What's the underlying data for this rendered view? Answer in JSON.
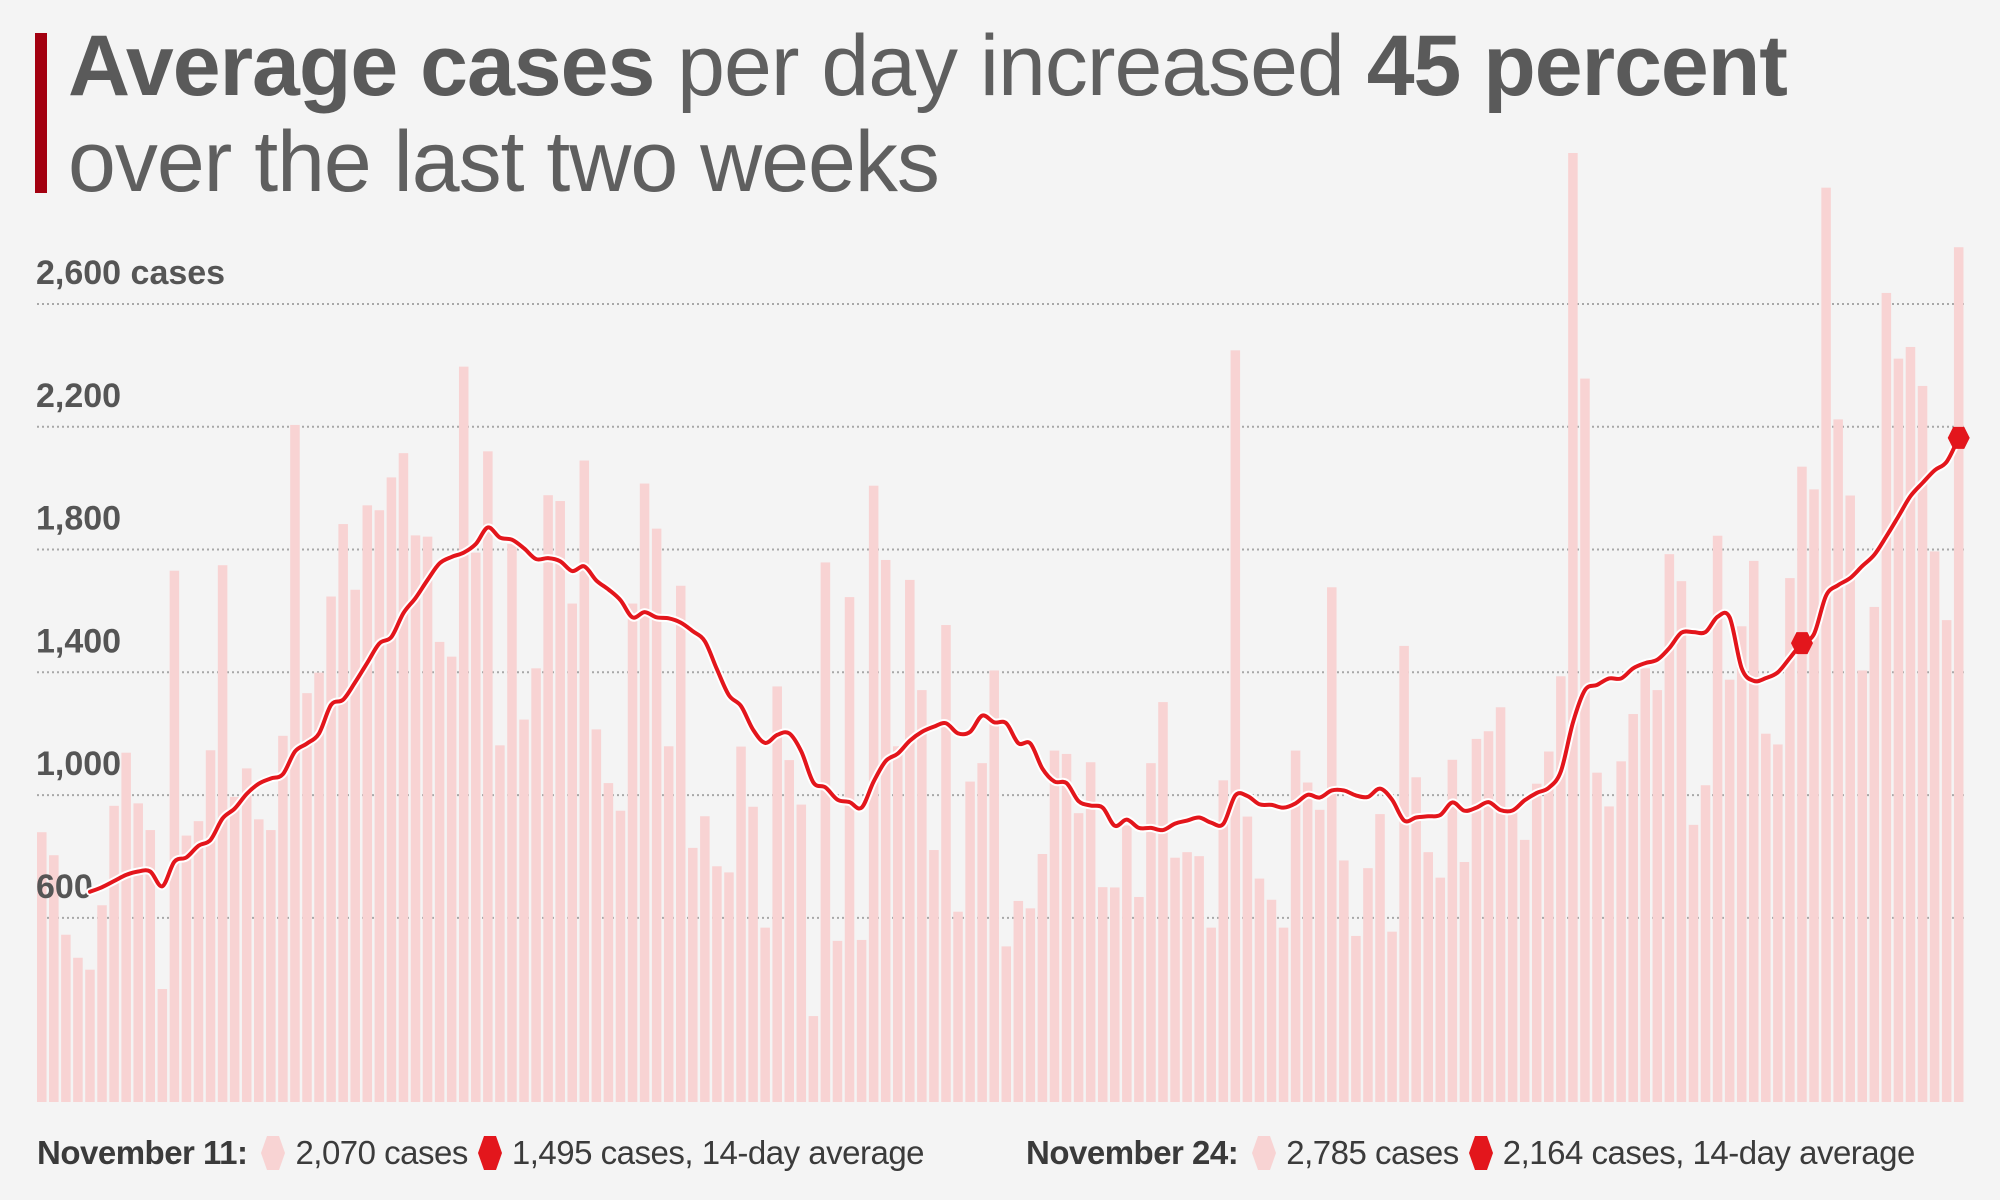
{
  "headline": {
    "part1_bold": "Average cases",
    "part2": " per day increased ",
    "part3_bold": "45 percent",
    "line2": "over the last two weeks"
  },
  "colors": {
    "background": "#f4f4f4",
    "accent": "#a30010",
    "bar": "#f8d3d3",
    "line": "#e3161c",
    "text": "#5a5a5a"
  },
  "legend": [
    {
      "date": "November 11:",
      "daily": "2,070 cases",
      "average": "1,495 cases, 14-day average"
    },
    {
      "date": "November 24:",
      "daily": "2,785 cases",
      "average": "2,164 cases, 14-day average"
    }
  ],
  "chart_data": {
    "type": "bar",
    "title": "Average cases per day increased 45 percent over the last two weeks",
    "xlabel": "",
    "ylabel": "cases",
    "ylim": [
      0,
      2600
    ],
    "grid": true,
    "yticks": [
      600,
      1000,
      1400,
      1800,
      2200,
      2600
    ],
    "ytick_labels": [
      "600",
      "1,000",
      "1,400",
      "1,800",
      "2,200",
      "2,600 cases"
    ],
    "legend_position": "bottom",
    "highlighted": [
      {
        "label": "November 11",
        "index": 146,
        "cases": 2070,
        "average": 1495
      },
      {
        "label": "November 24",
        "index": 159,
        "cases": 2785,
        "average": 2164
      }
    ],
    "series": [
      {
        "name": "Daily cases",
        "type": "bar",
        "values": [
          879,
          804,
          545,
          470,
          431,
          641,
          965,
          1138,
          973,
          886,
          368,
          1731,
          868,
          915,
          1146,
          1749,
          994,
          1087,
          921,
          886,
          1193,
          2206,
          1332,
          1399,
          1647,
          1883,
          1669,
          1944,
          1928,
          2035,
          2114,
          1846,
          1842,
          1499,
          1451,
          2396,
          1790,
          2120,
          1162,
          1818,
          1246,
          1413,
          1977,
          1958,
          1624,
          2090,
          1214,
          1039,
          949,
          1624,
          2015,
          1868,
          1159,
          1682,
          828,
          931,
          768,
          748,
          1158,
          962,
          568,
          1354,
          1114,
          969,
          280,
          1758,
          525,
          1645,
          528,
          2008,
          1766,
          1159,
          1701,
          1342,
          821,
          1554,
          620,
          1044,
          1104,
          1406,
          507,
          655,
          631,
          808,
          1145,
          1134,
          941,
          1107,
          700,
          699,
          901,
          668,
          1104,
          1303,
          796,
          814,
          801,
          568,
          1048,
          2449,
          930,
          728,
          659,
          568,
          1145,
          1041,
          952,
          1677,
          787,
          541,
          762,
          938,
          555,
          1486,
          1058,
          814,
          731,
          1115,
          782,
          1183,
          1208,
          1286,
          944,
          854,
          1037,
          1142,
          1387,
          3092,
          2357,
          1073,
          963,
          1110,
          1264,
          1413,
          1342,
          1785,
          1697,
          903,
          1032,
          1845,
          1376,
          1550,
          1763,
          1200,
          1165,
          1707,
          2070,
          1996,
          2979,
          2224,
          1976,
          1406,
          1613,
          2636,
          2422,
          2460,
          2333,
          1794,
          1570,
          2785
        ]
      },
      {
        "name": "14-day average",
        "type": "line",
        "values": [
          null,
          null,
          null,
          null,
          685,
          700,
          720,
          740,
          751,
          751,
          703,
          783,
          797,
          835,
          854,
          924,
          956,
          1004,
          1037,
          1054,
          1068,
          1142,
          1168,
          1201,
          1294,
          1311,
          1368,
          1431,
          1494,
          1515,
          1593,
          1642,
          1701,
          1755,
          1776,
          1790,
          1818,
          1872,
          1839,
          1832,
          1804,
          1769,
          1772,
          1762,
          1730,
          1745,
          1699,
          1670,
          1635,
          1579,
          1596,
          1579,
          1576,
          1562,
          1534,
          1501,
          1410,
          1325,
          1290,
          1213,
          1170,
          1196,
          1201,
          1142,
          1041,
          1025,
          985,
          977,
          959,
          1044,
          1111,
          1135,
          1177,
          1206,
          1223,
          1234,
          1201,
          1206,
          1259,
          1237,
          1234,
          1169,
          1168,
          1086,
          1044,
          1039,
          980,
          966,
          959,
          900,
          920,
          893,
          893,
          886,
          907,
          917,
          927,
          910,
          906,
          999,
          997,
          970,
          968,
          959,
          973,
          1001,
          992,
          1015,
          1015,
          999,
          994,
          1021,
          985,
          917,
          927,
          931,
          935,
          976,
          949,
          959,
          977,
          951,
          950,
          983,
          1007,
          1024,
          1077,
          1236,
          1342,
          1359,
          1380,
          1380,
          1413,
          1430,
          1441,
          1479,
          1529,
          1531,
          1531,
          1581,
          1579,
          1413,
          1372,
          1381,
          1400,
          1447,
          1495,
          1525,
          1650,
          1684,
          1707,
          1746,
          1783,
          1843,
          1908,
          1974,
          2017,
          2058,
          2086,
          2164
        ]
      }
    ]
  }
}
